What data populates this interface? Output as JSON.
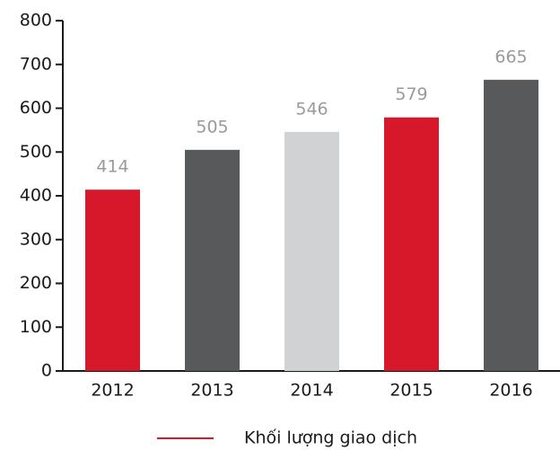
{
  "chart_data": {
    "type": "bar",
    "categories": [
      "2012",
      "2013",
      "2014",
      "2015",
      "2016"
    ],
    "series": [
      {
        "name": "Khối lượng giao dịch",
        "color": "#d7182a",
        "values": [
          414,
          505,
          546,
          579,
          665
        ],
        "colors": [
          "#d7182a",
          "#58595b",
          "#d1d2d4",
          "#d7182a",
          "#58595b"
        ]
      }
    ],
    "ylim": [
      0,
      800
    ],
    "yticks": [
      0,
      100,
      200,
      300,
      400,
      500,
      600,
      700,
      800
    ],
    "grid": false,
    "legend": "bottom"
  }
}
